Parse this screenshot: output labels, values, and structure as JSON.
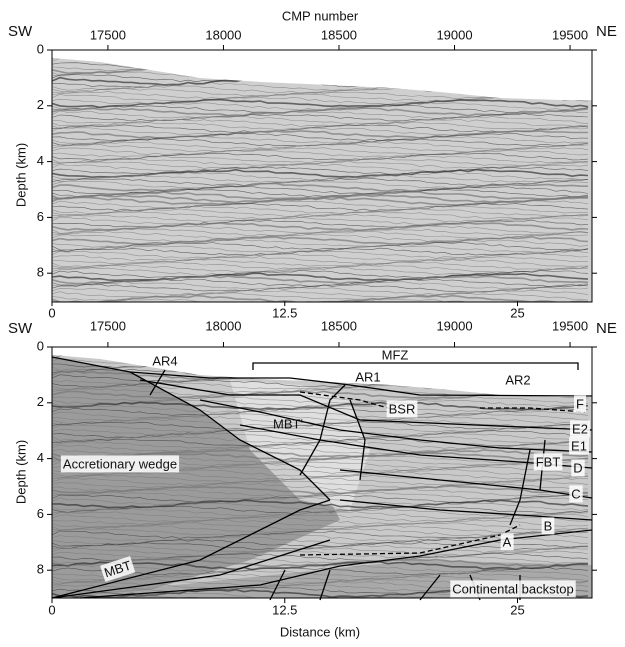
{
  "panels": [
    {
      "corner_labels": [
        "SW",
        "NE"
      ],
      "top_axis": {
        "title": "CMP number",
        "lim": [
          17258,
          19595
        ],
        "ticks": [
          17500,
          18000,
          18500,
          19000,
          19500
        ]
      },
      "left_axis": {
        "title": "Depth (km)",
        "lim": [
          0,
          9
        ],
        "ticks": [
          0,
          2,
          4,
          6,
          8
        ]
      },
      "bottom_axis": {
        "lim": [
          0,
          29
        ],
        "ticks": [
          0,
          12.5,
          25
        ]
      }
    },
    {
      "corner_labels": [
        "SW",
        "NE"
      ],
      "top_axis": {
        "lim": [
          17258,
          19595
        ],
        "ticks": [
          17500,
          18000,
          18500,
          19000,
          19500
        ]
      },
      "left_axis": {
        "title": "Depth (km)",
        "lim": [
          0,
          9
        ],
        "ticks": [
          0,
          2,
          4,
          6,
          8
        ]
      },
      "bottom_axis": {
        "title": "Distance (km)",
        "lim": [
          0,
          29
        ],
        "ticks": [
          0,
          12.5,
          25
        ]
      },
      "annotations": [
        "AR4",
        "MFZ",
        "AR1",
        "AR2",
        "BSR",
        "F",
        "E2",
        "E1",
        "D",
        "C",
        "B",
        "A",
        "MBT'",
        "FBT",
        "Accretionary wedge",
        "MBT",
        "Continental backstop"
      ]
    }
  ]
}
